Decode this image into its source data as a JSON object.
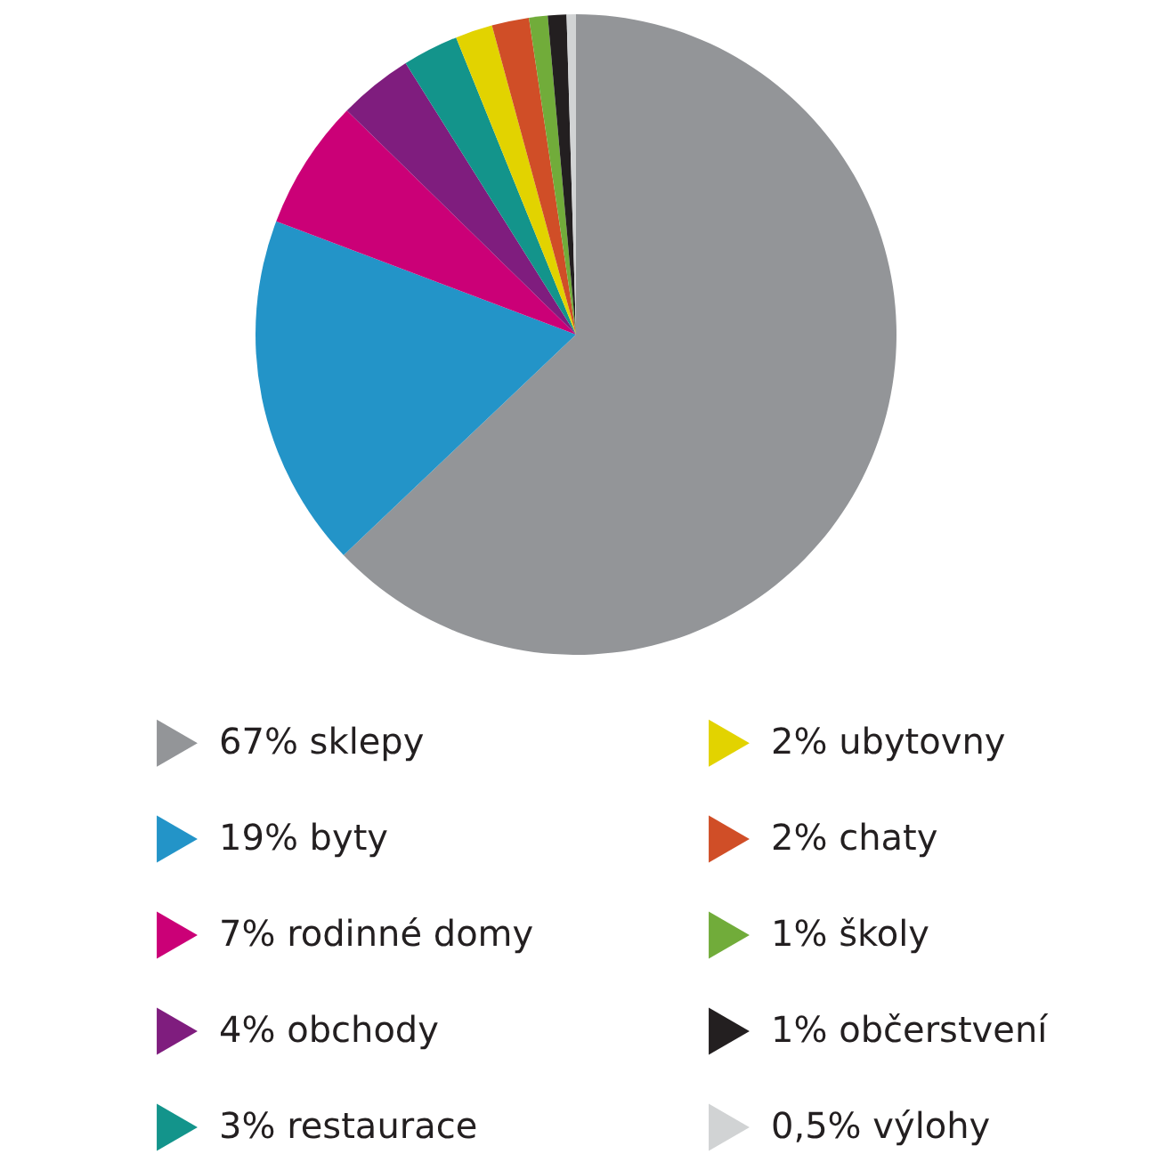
{
  "chart_data": {
    "type": "pie",
    "categories": [
      "sklepy",
      "byty",
      "rodinné domy",
      "obchody",
      "restaurace",
      "ubytovny",
      "chaty",
      "školy",
      "občerstvení",
      "výlohy"
    ],
    "values": [
      67,
      19,
      7,
      4,
      3,
      2,
      2,
      1,
      1,
      0.5
    ],
    "value_labels": [
      "67%",
      "19%",
      "7%",
      "4%",
      "3%",
      "2%",
      "2%",
      "1%",
      "1%",
      "0,5%"
    ],
    "colors": [
      "#939598",
      "#2394c8",
      "#cb0077",
      "#7f1d7e",
      "#13948b",
      "#e2d300",
      "#d04e27",
      "#71ac3a",
      "#231f20",
      "#d1d3d4"
    ],
    "legend": "bottom"
  }
}
